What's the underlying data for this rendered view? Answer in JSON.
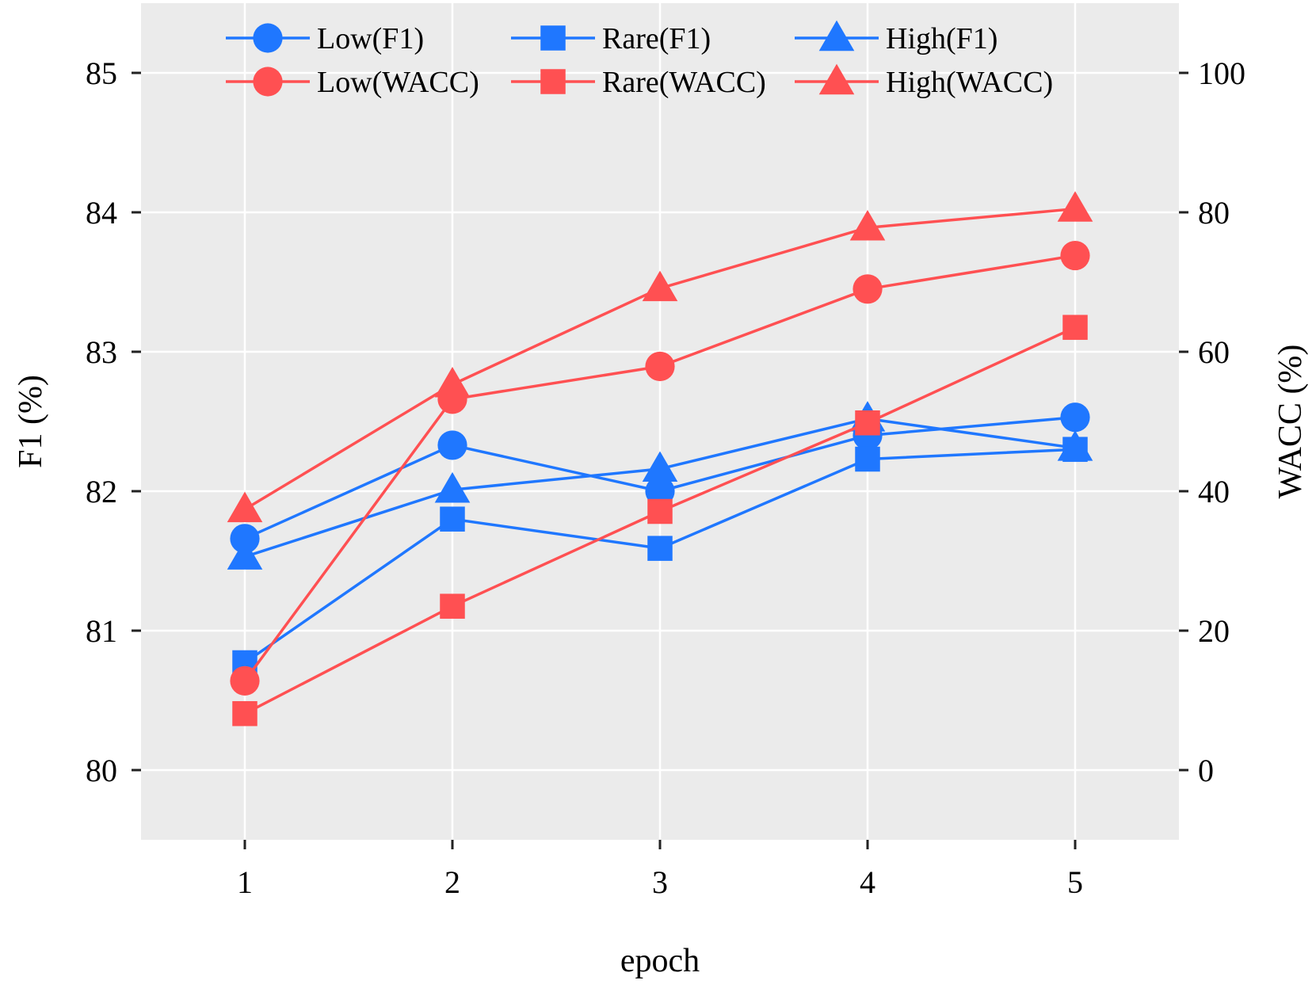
{
  "chart_data": {
    "type": "line",
    "title": "",
    "x": [
      1,
      2,
      3,
      4,
      5
    ],
    "xlabel": "epoch",
    "x_ticks": [
      "1",
      "2",
      "3",
      "4",
      "5"
    ],
    "xlim": [
      0.5,
      5.5
    ],
    "ylabel_left": "F1 (%)",
    "ylim_left": [
      79.5,
      85.5
    ],
    "y_ticks_left": [
      "80",
      "81",
      "82",
      "83",
      "84",
      "85"
    ],
    "ylabel_right": "WACC (%)",
    "ylim_right": [
      -10,
      110
    ],
    "y_ticks_right": [
      "0",
      "20",
      "40",
      "60",
      "80",
      "100"
    ],
    "grid": true,
    "legend_position": "top",
    "colors": {
      "f1": "#1f77ff",
      "wacc": "#ff5052",
      "panel": "#ebebeb",
      "grid": "#ffffff"
    },
    "series": [
      {
        "name": "Low(F1)",
        "axis": "left",
        "marker": "circle",
        "color": "#1f77ff",
        "values": [
          81.66,
          82.33,
          82.0,
          82.4,
          82.53
        ]
      },
      {
        "name": "Rare(F1)",
        "axis": "left",
        "marker": "square",
        "color": "#1f77ff",
        "values": [
          80.77,
          81.8,
          81.59,
          82.23,
          82.3
        ]
      },
      {
        "name": "High(F1)",
        "axis": "left",
        "marker": "triangle",
        "color": "#1f77ff",
        "values": [
          81.53,
          82.01,
          82.16,
          82.52,
          82.31
        ]
      },
      {
        "name": "Low(WACC)",
        "axis": "right",
        "marker": "circle",
        "color": "#ff5052",
        "values": [
          12.8,
          53.2,
          57.9,
          69.0,
          73.8
        ]
      },
      {
        "name": "Rare(WACC)",
        "axis": "right",
        "marker": "square",
        "color": "#ff5052",
        "values": [
          8.1,
          23.5,
          37.1,
          49.8,
          63.5
        ]
      },
      {
        "name": "High(WACC)",
        "axis": "right",
        "marker": "triangle",
        "color": "#ff5052",
        "values": [
          37.4,
          55.3,
          69.1,
          77.8,
          80.5
        ]
      }
    ]
  }
}
